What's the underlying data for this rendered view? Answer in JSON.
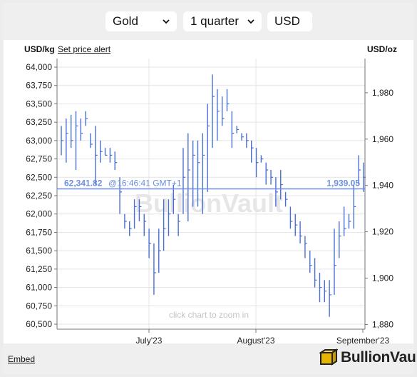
{
  "selectors": {
    "metal": "Gold",
    "period": "1 quarter",
    "currency": "USD"
  },
  "header": {
    "left_unit": "USD/kg",
    "set_alert_label": "Set price alert",
    "right_unit": "USD/oz"
  },
  "watermark": "BullionVault",
  "zoom_hint": "click chart to zoom in",
  "footer": {
    "embed_label": "Embed",
    "brand": "BullionVault"
  },
  "colors": {
    "series": "#4a6fd4",
    "current_line": "#6b8ee0",
    "grid": "#e4e4e4",
    "brand_gold": "#e7b400"
  },
  "chart_data": {
    "type": "line",
    "subtype": "high-low-close bars",
    "ylabel_left": "USD/kg",
    "ylabel_right": "USD/oz",
    "xlabel": "",
    "title": "",
    "ylim_left": [
      60500,
      64000
    ],
    "left_ticks": [
      "64,000",
      "63,750",
      "63,500",
      "63,250",
      "63,000",
      "62,750",
      "62,500",
      "62,250",
      "62,000",
      "61,750",
      "61,500",
      "61,250",
      "61,000",
      "60,750",
      "60,500"
    ],
    "right_ticks": [
      "1,980",
      "1,960",
      "1,940",
      "1,920",
      "1,900",
      "1,880"
    ],
    "right_tick_values": [
      1980,
      1960,
      1940,
      1920,
      1900,
      1880
    ],
    "x_ticks": [
      "July'23",
      "August'23",
      "September'23"
    ],
    "current": {
      "kg": 62341.82,
      "oz": 1939.05,
      "kg_label": "62,341.82",
      "oz_label": "1,939.05",
      "time_label": "@16:46:41 GMT+1"
    },
    "grid": true,
    "bars_low": [
      62800,
      62700,
      62900,
      62600,
      63000,
      63200,
      62900,
      62400,
      62700,
      62800,
      62700,
      62600,
      62000,
      61800,
      61700,
      61800,
      61900,
      61700,
      61400,
      60900,
      61200,
      61500,
      61700,
      62000,
      61700,
      62000,
      61900,
      62100,
      62100,
      62000,
      62300,
      62900,
      63000,
      63200,
      63400,
      62900,
      63100,
      63000,
      62900,
      62700,
      62500,
      62700,
      62400,
      62400,
      62100,
      62200,
      62100,
      61800,
      61700,
      61600,
      61400,
      61200,
      61000,
      60800,
      60800,
      60600,
      60900,
      61400,
      61700,
      61800,
      61800,
      62400,
      62300
    ],
    "bars_high": [
      63200,
      63300,
      63350,
      63400,
      63300,
      63400,
      63100,
      63200,
      63000,
      62900,
      62900,
      62850,
      62500,
      62000,
      61900,
      62200,
      62200,
      62000,
      61800,
      61600,
      61800,
      62200,
      62200,
      62400,
      62000,
      62900,
      63100,
      63000,
      63000,
      63100,
      63500,
      63900,
      63700,
      63600,
      63700,
      63400,
      63200,
      63100,
      63100,
      63000,
      62900,
      62800,
      62700,
      62600,
      62500,
      62600,
      62300,
      62100,
      62000,
      61900,
      61700,
      61500,
      61400,
      61200,
      61100,
      61100,
      61800,
      61900,
      62100,
      62000,
      62400,
      62800,
      62700
    ],
    "bars_close": [
      63000,
      63100,
      63000,
      63200,
      63100,
      63300,
      62950,
      62800,
      62850,
      62800,
      62800,
      62700,
      62300,
      61900,
      61800,
      62100,
      62100,
      61900,
      61600,
      61200,
      61500,
      61800,
      62000,
      62200,
      61900,
      62500,
      62600,
      62800,
      62700,
      62800,
      63200,
      63600,
      63400,
      63300,
      63500,
      63100,
      63150,
      63050,
      63000,
      62900,
      62700,
      62750,
      62600,
      62500,
      62300,
      62400,
      62200,
      61900,
      61850,
      61700,
      61600,
      61300,
      61100,
      61000,
      60950,
      60900,
      61300,
      61700,
      61800,
      61900,
      62100,
      62600,
      62500
    ]
  }
}
